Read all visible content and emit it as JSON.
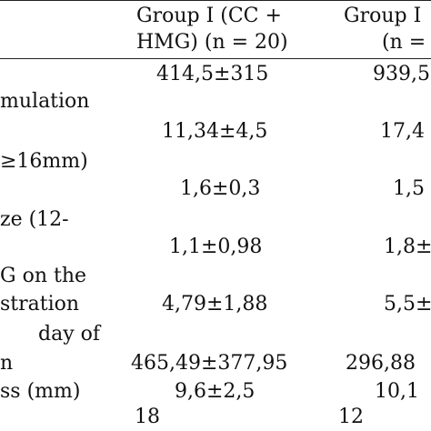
{
  "table": {
    "headers": [
      {
        "line1": "Group I (CC +",
        "line2": "HMG) (n = 20)"
      },
      {
        "line1": "Group I",
        "line2": "(n ="
      }
    ],
    "row_labels": [
      "mulation",
      "≥16mm)",
      "ze    (12-",
      "G  on  the",
      "stration",
      "day    of",
      "n",
      "ss (mm)"
    ],
    "rows": [
      {
        "g1": "414,5±315",
        "g2": "939,5"
      },
      {
        "g1": "11,34±4,5",
        "g2": "17,4"
      },
      {
        "g1": "1,6±0,3",
        "g2": "1,5"
      },
      {
        "g1": "1,1±0,98",
        "g2": "1,8±"
      },
      {
        "g1": "4,79±1,88",
        "g2": "5,5±"
      },
      {
        "g1": "465,49±377,95",
        "g2": "296,88"
      },
      {
        "g1": "9,6±2,5",
        "g2": "10,1"
      },
      {
        "g1": "18",
        "g2": "12"
      }
    ]
  }
}
